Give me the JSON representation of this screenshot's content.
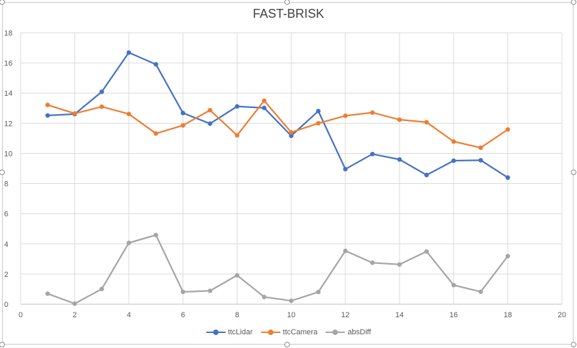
{
  "chart_data": {
    "type": "line",
    "title": "FAST-BRISK",
    "xlim": [
      0,
      20
    ],
    "ylim": [
      0,
      18
    ],
    "xticks": [
      0,
      2,
      4,
      6,
      8,
      10,
      12,
      14,
      16,
      18,
      20
    ],
    "yticks": [
      0,
      2,
      4,
      6,
      8,
      10,
      12,
      14,
      16,
      18
    ],
    "grid": true,
    "legend_position": "bottom",
    "x": [
      1,
      2,
      3,
      4,
      5,
      6,
      7,
      8,
      9,
      10,
      11,
      12,
      13,
      14,
      15,
      16,
      17,
      18
    ],
    "series": [
      {
        "name": "ttcLidar",
        "color": "#4472C4",
        "values": [
          12.52,
          12.61,
          14.09,
          16.69,
          15.91,
          12.68,
          11.98,
          13.12,
          13.02,
          11.17,
          12.81,
          8.96,
          9.96,
          9.6,
          8.57,
          9.52,
          9.55,
          8.4
        ]
      },
      {
        "name": "ttcCamera",
        "color": "#ED7D31",
        "values": [
          13.22,
          12.65,
          13.1,
          12.62,
          11.32,
          11.86,
          12.87,
          11.2,
          13.5,
          11.4,
          12.0,
          12.5,
          12.71,
          12.24,
          12.07,
          10.79,
          10.38,
          11.59
        ]
      },
      {
        "name": "absDiff",
        "color": "#A5A5A5",
        "values": [
          0.7,
          0.04,
          1.01,
          4.07,
          4.59,
          0.82,
          0.89,
          1.92,
          0.48,
          0.23,
          0.81,
          3.54,
          2.75,
          2.64,
          3.5,
          1.27,
          0.83,
          3.19
        ]
      }
    ]
  }
}
